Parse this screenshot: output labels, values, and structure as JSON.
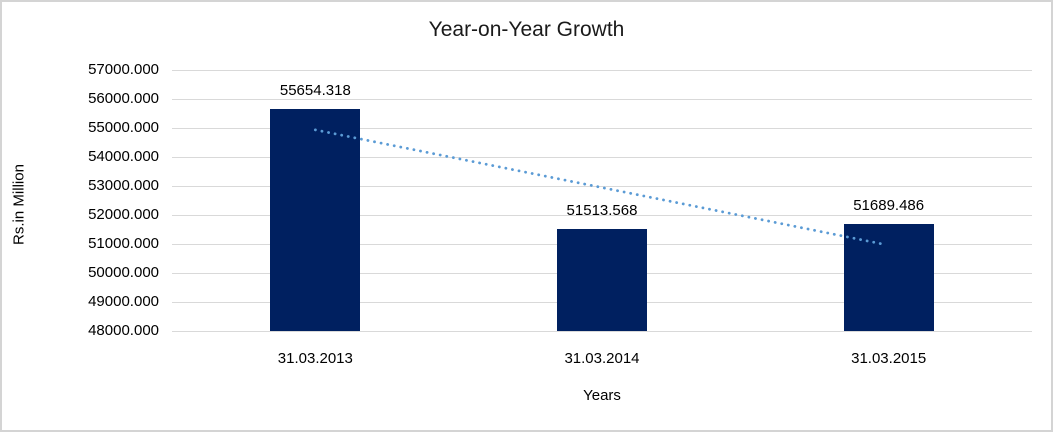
{
  "chart": {
    "title": "Year-on-Year Growth",
    "y_axis_title": "Rs.in Million",
    "x_axis_title": "Years"
  },
  "chart_data": {
    "type": "bar",
    "title": "Year-on-Year Growth",
    "xlabel": "Years",
    "ylabel": "Rs.in Million",
    "categories": [
      "31.03.2013",
      "31.03.2014",
      "31.03.2015"
    ],
    "values": [
      55654.318,
      51513.568,
      51689.486
    ],
    "data_labels": [
      "55654.318",
      "51513.568",
      "51689.486"
    ],
    "y_ticks": [
      "57000.000",
      "56000.000",
      "55000.000",
      "54000.000",
      "53000.000",
      "52000.000",
      "51000.000",
      "50000.000",
      "49000.000",
      "48000.000"
    ],
    "ylim": [
      48000,
      57000
    ],
    "grid": true,
    "legend": "none",
    "trendline": "linear-dotted",
    "colors": {
      "bar": "#002060",
      "trendline": "#5b9bd5",
      "gridline": "#d9d9d9",
      "border": "#d4d4d4",
      "text": "#000000"
    }
  }
}
